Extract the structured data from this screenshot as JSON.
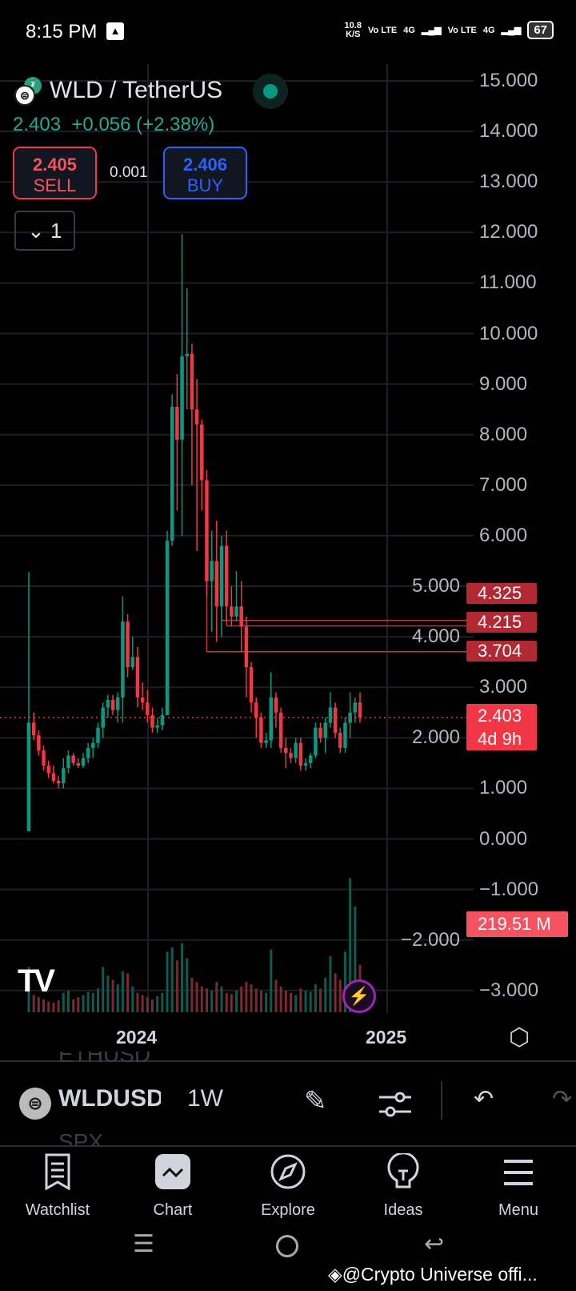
{
  "status_bar": {
    "time": "8:15 PM",
    "net_speed": "10.8",
    "net_unit": "K/S",
    "sim1": "Vo LTE",
    "sim1_net": "4G",
    "sim2": "Vo LTE",
    "sim2_net": "4G",
    "battery": "67"
  },
  "header": {
    "symbol_title": "WLD / TetherUS",
    "last_price": "2.403",
    "change": "+0.056",
    "change_pct": "(+2.38%)",
    "sell_price": "2.405",
    "sell_label": "SELL",
    "spread": "0.001",
    "buy_price": "2.406",
    "buy_label": "BUY",
    "collapse_count": "1"
  },
  "colors": {
    "up": "#089981",
    "down": "#f23645",
    "buy": "#2962ff",
    "sell": "#f23645",
    "background": "#000000"
  },
  "chart_data": {
    "type": "candlestick",
    "interval": "1W",
    "ylim": [
      -3,
      15
    ],
    "y_ticks": [
      "15.000",
      "14.000",
      "13.000",
      "12.000",
      "11.000",
      "10.000",
      "9.000",
      "8.000",
      "7.000",
      "6.000",
      "5.000",
      "4.000",
      "3.000",
      "2.000",
      "1.000",
      "0.000",
      "−1.000",
      "−2.000",
      "−3.000"
    ],
    "x_ticks": [
      "2024",
      "2025"
    ],
    "ohlc": [
      [
        0.15,
        5.28,
        0.15,
        2.3
      ],
      [
        2.3,
        2.5,
        1.95,
        2.05
      ],
      [
        2.05,
        2.15,
        1.65,
        1.75
      ],
      [
        1.75,
        1.85,
        1.35,
        1.45
      ],
      [
        1.45,
        1.55,
        1.2,
        1.3
      ],
      [
        1.3,
        1.45,
        1.1,
        1.15
      ],
      [
        1.15,
        1.25,
        1.0,
        1.1
      ],
      [
        1.1,
        1.6,
        1.0,
        1.4
      ],
      [
        1.4,
        1.75,
        1.3,
        1.65
      ],
      [
        1.65,
        1.7,
        1.45,
        1.5
      ],
      [
        1.5,
        1.6,
        1.4,
        1.45
      ],
      [
        1.45,
        1.7,
        1.4,
        1.6
      ],
      [
        1.6,
        1.9,
        1.5,
        1.8
      ],
      [
        1.8,
        2.0,
        1.6,
        1.9
      ],
      [
        1.9,
        2.3,
        1.8,
        2.2
      ],
      [
        2.2,
        2.7,
        2.0,
        2.6
      ],
      [
        2.6,
        2.85,
        2.4,
        2.75
      ],
      [
        2.75,
        2.85,
        2.45,
        2.55
      ],
      [
        2.55,
        2.9,
        2.3,
        2.8
      ],
      [
        2.8,
        4.8,
        2.3,
        4.3
      ],
      [
        4.3,
        4.45,
        3.2,
        3.4
      ],
      [
        3.4,
        4.0,
        3.35,
        3.6
      ],
      [
        3.6,
        3.8,
        2.6,
        2.8
      ],
      [
        2.8,
        3.1,
        2.55,
        2.7
      ],
      [
        2.7,
        2.95,
        2.3,
        2.45
      ],
      [
        2.45,
        2.6,
        2.1,
        2.2
      ],
      [
        2.2,
        2.4,
        2.1,
        2.25
      ],
      [
        2.25,
        2.6,
        2.15,
        2.45
      ],
      [
        2.45,
        6.1,
        2.45,
        5.9
      ],
      [
        5.9,
        8.8,
        5.8,
        8.55
      ],
      [
        8.55,
        9.2,
        6.5,
        7.9
      ],
      [
        7.9,
        11.97,
        6.0,
        9.55
      ],
      [
        9.55,
        10.9,
        8.5,
        9.6
      ],
      [
        9.6,
        9.8,
        7.0,
        8.5
      ],
      [
        8.5,
        9.1,
        5.7,
        8.2
      ],
      [
        8.2,
        8.3,
        6.5,
        7.1
      ],
      [
        7.1,
        7.3,
        4.8,
        5.1
      ],
      [
        5.1,
        6.1,
        4.1,
        5.5
      ],
      [
        5.5,
        6.3,
        3.9,
        4.6
      ],
      [
        4.6,
        6.0,
        4.0,
        5.8
      ],
      [
        5.8,
        6.1,
        4.3,
        4.6
      ],
      [
        4.6,
        5.0,
        4.2,
        4.4
      ],
      [
        4.4,
        5.3,
        4.3,
        4.6
      ],
      [
        4.6,
        5.1,
        3.7,
        4.2
      ],
      [
        4.2,
        4.4,
        2.8,
        3.4
      ],
      [
        3.4,
        3.5,
        2.5,
        2.7
      ],
      [
        2.7,
        2.8,
        2.0,
        2.4
      ],
      [
        2.4,
        2.5,
        1.8,
        1.9
      ],
      [
        1.9,
        2.1,
        1.8,
        1.95
      ],
      [
        1.95,
        3.3,
        1.8,
        2.8
      ],
      [
        2.8,
        2.9,
        2.2,
        2.5
      ],
      [
        2.5,
        2.6,
        1.7,
        1.8
      ],
      [
        1.8,
        2.0,
        1.4,
        1.7
      ],
      [
        1.7,
        1.8,
        1.5,
        1.6
      ],
      [
        1.6,
        2.0,
        1.5,
        1.9
      ],
      [
        1.9,
        2.0,
        1.35,
        1.45
      ],
      [
        1.45,
        1.6,
        1.35,
        1.5
      ],
      [
        1.5,
        1.7,
        1.4,
        1.65
      ],
      [
        1.65,
        2.3,
        1.6,
        2.2
      ],
      [
        2.2,
        2.3,
        1.9,
        2.0
      ],
      [
        2.0,
        2.4,
        1.7,
        2.3
      ],
      [
        2.3,
        2.9,
        2.2,
        2.6
      ],
      [
        2.6,
        2.7,
        2.0,
        2.1
      ],
      [
        2.1,
        2.2,
        1.7,
        1.8
      ],
      [
        1.8,
        2.4,
        1.7,
        2.3
      ],
      [
        2.3,
        2.9,
        2.0,
        2.5
      ],
      [
        2.5,
        2.8,
        2.3,
        2.7
      ],
      [
        2.7,
        2.9,
        2.3,
        2.403
      ]
    ],
    "volume_m": [
      210,
      80,
      70,
      60,
      50,
      45,
      55,
      90,
      100,
      60,
      70,
      80,
      95,
      90,
      110,
      210,
      170,
      150,
      130,
      190,
      180,
      120,
      90,
      80,
      70,
      60,
      75,
      90,
      280,
      300,
      240,
      320,
      250,
      160,
      140,
      120,
      110,
      100,
      140,
      120,
      90,
      85,
      100,
      120,
      140,
      130,
      110,
      100,
      90,
      290,
      150,
      120,
      100,
      90,
      80,
      110,
      100,
      95,
      130,
      110,
      160,
      260,
      180,
      150,
      280,
      620,
      490,
      219.51
    ],
    "horizontal_levels": [
      "4.325",
      "4.215",
      "3.704"
    ],
    "current_price": "2.403",
    "countdown": "4d 9h",
    "volume_label": "219.51 M"
  },
  "toolbar": {
    "symbol": "WLDUSD",
    "interval": "1W",
    "prev_symbol": "ETHUSD",
    "next_symbol": "SPX"
  },
  "bottom_nav": [
    {
      "label": "Watchlist"
    },
    {
      "label": "Chart"
    },
    {
      "label": "Explore"
    },
    {
      "label": "Ideas"
    },
    {
      "label": "Menu"
    }
  ],
  "watermark": "@Crypto Universe offi..."
}
